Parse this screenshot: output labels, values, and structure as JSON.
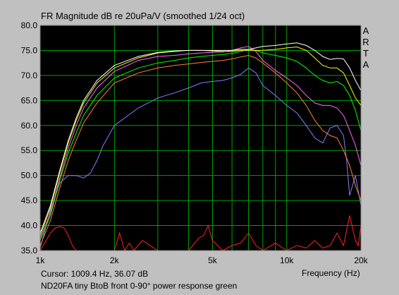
{
  "chart_data": {
    "type": "line",
    "title": "FR Magnitude dB re 20uPa/V (smoothed 1/24 oct)",
    "brand": [
      "A",
      "R",
      "T",
      "A"
    ],
    "xlabel": "Frequency (Hz)",
    "xscale": "log",
    "xlim": [
      1000,
      20000
    ],
    "ylim": [
      35,
      80
    ],
    "x_ticks": [
      {
        "value": 1000,
        "label": "1k"
      },
      {
        "value": 2000,
        "label": "2k"
      },
      {
        "value": 5000,
        "label": "5k"
      },
      {
        "value": 10000,
        "label": "10k"
      },
      {
        "value": 20000,
        "label": "20k"
      }
    ],
    "x_minor_gridlines": [
      3000,
      4000,
      6000,
      7000,
      8000,
      9000
    ],
    "y_ticks": [
      35.0,
      40.0,
      45.0,
      50.0,
      55.0,
      60.0,
      65.0,
      70.0,
      75.0,
      80.0
    ],
    "y_tick_labels": [
      "35.0",
      "40.0",
      "45.0",
      "50.0",
      "55.0",
      "60.0",
      "65.0",
      "70.0",
      "75.0",
      "80.0"
    ],
    "grid": true,
    "background": "#000000",
    "grid_color": "#00a000",
    "series": [
      {
        "color": "#ffffff",
        "x": [
          1000,
          1100,
          1200,
          1300,
          1400,
          1500,
          1700,
          2000,
          2500,
          3000,
          3500,
          4000,
          4500,
          5000,
          5500,
          6000,
          6500,
          7000,
          7500,
          8000,
          9000,
          10000,
          11000,
          12000,
          13000,
          14000,
          15000,
          16000,
          17000,
          18000,
          19000,
          20000
        ],
        "y": [
          38.5,
          44,
          51,
          57,
          61.5,
          65,
          69,
          72,
          73.8,
          74.6,
          74.9,
          75,
          75,
          75,
          75,
          75,
          75.2,
          75.2,
          75.5,
          75.8,
          76,
          76.3,
          76.5,
          76,
          75,
          73.8,
          73.2,
          73.4,
          73.3,
          71.5,
          69,
          67
        ]
      },
      {
        "color": "#ffff00",
        "x": [
          1000,
          1100,
          1200,
          1300,
          1400,
          1500,
          1700,
          2000,
          2500,
          3000,
          3500,
          4000,
          4500,
          5000,
          5500,
          6000,
          6500,
          7000,
          7500,
          8000,
          9000,
          10000,
          11000,
          12000,
          13000,
          14000,
          15000,
          16000,
          17000,
          18000,
          19000,
          20000
        ],
        "y": [
          38,
          43.5,
          50.5,
          56.5,
          61,
          64.5,
          68.5,
          71.5,
          73.5,
          74.5,
          74.8,
          75,
          75,
          74.9,
          74.8,
          74.8,
          75,
          75,
          75,
          75,
          75.2,
          75.5,
          75.7,
          75,
          73.5,
          72,
          71.5,
          71.5,
          70.5,
          68,
          65.5,
          64
        ]
      },
      {
        "color": "#ff66ff",
        "x": [
          1000,
          1100,
          1200,
          1300,
          1400,
          1500,
          1700,
          2000,
          2500,
          3000,
          3500,
          4000,
          4500,
          5000,
          5500,
          6000,
          6500,
          7000,
          7500,
          8000,
          9000,
          10000,
          11000,
          12000,
          13000,
          14000,
          15000,
          16000,
          17000,
          18000,
          19000,
          20000
        ],
        "y": [
          37.5,
          42.5,
          49.5,
          55.5,
          60,
          63.5,
          67.5,
          70.8,
          73,
          73.8,
          74,
          74.3,
          74.5,
          74.6,
          74.7,
          75,
          75.5,
          75.8,
          74.8,
          73,
          71,
          69.5,
          68,
          66,
          64.5,
          64,
          64,
          63.5,
          62,
          59,
          56,
          52
        ]
      },
      {
        "color": "#00ff00",
        "x": [
          1000,
          1100,
          1200,
          1300,
          1400,
          1500,
          1700,
          2000,
          2500,
          3000,
          3500,
          4000,
          4500,
          5000,
          5500,
          6000,
          6500,
          7000,
          7500,
          8000,
          9000,
          10000,
          11000,
          12000,
          13000,
          14000,
          15000,
          16000,
          17000,
          18000,
          19000,
          20000
        ],
        "y": [
          37,
          42,
          49,
          54.5,
          58.5,
          62,
          66,
          69.5,
          71.5,
          72.5,
          73,
          73.5,
          73.8,
          74,
          74.2,
          74.4,
          74.8,
          75.2,
          75,
          74.5,
          74,
          73.5,
          72.8,
          71.5,
          70,
          69,
          68.5,
          68.8,
          68,
          66,
          63,
          59
        ]
      },
      {
        "color": "#ff8040",
        "x": [
          1000,
          1100,
          1200,
          1300,
          1400,
          1500,
          1700,
          2000,
          2500,
          3000,
          3500,
          4000,
          4500,
          5000,
          5500,
          6000,
          6500,
          7000,
          7500,
          8000,
          9000,
          10000,
          11000,
          12000,
          13000,
          14000,
          15000,
          16000,
          17000,
          18000,
          19000,
          20000
        ],
        "y": [
          36,
          41,
          47.5,
          53,
          57,
          60.5,
          64.5,
          68.5,
          70.5,
          71.5,
          72,
          72.3,
          72.6,
          72.8,
          73,
          73.3,
          73.7,
          74,
          73.5,
          72.5,
          70.5,
          68.5,
          66.5,
          64,
          61,
          59,
          58,
          57.5,
          55,
          52,
          48,
          45
        ]
      },
      {
        "color": "#8080ff",
        "x": [
          1000,
          1100,
          1200,
          1300,
          1400,
          1500,
          1600,
          1700,
          1800,
          2000,
          2500,
          3000,
          3500,
          4000,
          4500,
          5000,
          5500,
          6000,
          6500,
          7000,
          7500,
          8000,
          9000,
          10000,
          11000,
          12000,
          13000,
          14000,
          15000,
          16000,
          17000,
          17500,
          18000,
          19000,
          20000
        ],
        "y": [
          35.5,
          43,
          48.5,
          50,
          50,
          49.5,
          50.5,
          53,
          56,
          60,
          63.5,
          65.5,
          66.5,
          67.5,
          68.5,
          68.8,
          69,
          69.5,
          70.2,
          71.5,
          70.5,
          68,
          66,
          64,
          62.5,
          60,
          57.5,
          56.5,
          59.5,
          60,
          58,
          53,
          46,
          50,
          44
        ]
      },
      {
        "color": "#ff2020",
        "x": [
          1000,
          1100,
          1150,
          1200,
          1250,
          1300,
          1350,
          1400,
          2000,
          2100,
          2200,
          2300,
          2400,
          2600,
          3000,
          4000,
          4400,
          4600,
          4800,
          5000,
          5500,
          6000,
          6500,
          7000,
          7500,
          8000,
          9000,
          10000,
          11000,
          12000,
          13000,
          14000,
          15000,
          16000,
          17000,
          18000,
          19000,
          19500,
          20000
        ],
        "y": [
          35,
          38.5,
          39.5,
          39.8,
          39.5,
          38,
          36,
          35,
          35,
          38.5,
          35,
          36.5,
          35,
          37,
          35,
          35,
          37.5,
          38,
          40,
          37,
          35,
          36,
          36.5,
          38.5,
          36,
          35,
          36.5,
          35,
          36,
          35.5,
          37,
          35.5,
          36,
          38.5,
          36,
          42,
          37,
          36,
          40
        ]
      }
    ]
  },
  "cursor_text": "Cursor: 1009.4 Hz, 36.07 dB",
  "caption": "ND20FA tiny BtoB front 0-90° power response green"
}
